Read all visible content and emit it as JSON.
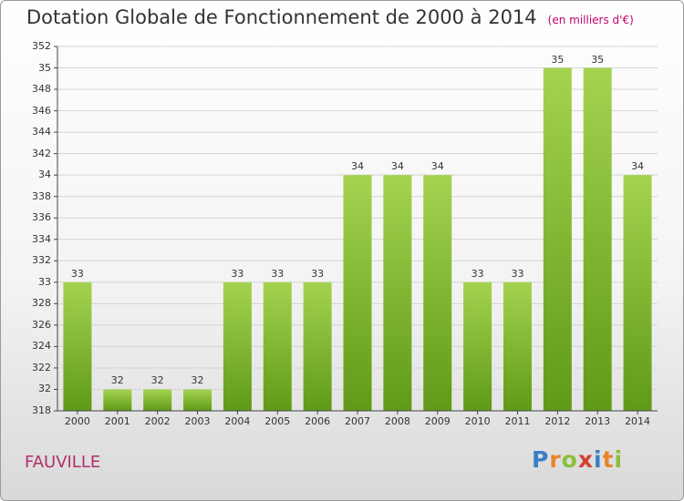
{
  "title": "Dotation Globale de Fonctionnement de 2000 à 2014",
  "unit_note": "(en milliers d'€)",
  "commune": "FAUVILLE",
  "logo": "Proxiti",
  "colors": {
    "bar_light": "#9fd04c",
    "bar_dark": "#5f9a16",
    "grid": "#d4d4d4",
    "axis": "#444444"
  },
  "chart_data": {
    "type": "bar",
    "title": "Dotation Globale de Fonctionnement de 2000 à 2014",
    "subtitle": "(en milliers d'€)",
    "categories": [
      "2000",
      "2001",
      "2002",
      "2003",
      "2004",
      "2005",
      "2006",
      "2007",
      "2008",
      "2009",
      "2010",
      "2011",
      "2012",
      "2013",
      "2014"
    ],
    "values": [
      33,
      32,
      32,
      32,
      33,
      33,
      33,
      34,
      34,
      34,
      33,
      33,
      35,
      35,
      34
    ],
    "bar_labels": [
      "33",
      "32",
      "32",
      "32",
      "33",
      "33",
      "33",
      "34",
      "34",
      "34",
      "33",
      "33",
      "35",
      "35",
      "34"
    ],
    "yticks": [
      "31.8",
      "32",
      "32.2",
      "32.4",
      "32.6",
      "32.8",
      "33",
      "33.2",
      "33.4",
      "33.6",
      "33.8",
      "34",
      "34.2",
      "34.4",
      "34.6",
      "34.8",
      "35",
      "35.2"
    ],
    "ytick_labels": [
      "318",
      "32",
      "322",
      "324",
      "326",
      "328",
      "33",
      "332",
      "334",
      "336",
      "338",
      "34",
      "342",
      "344",
      "346",
      "348",
      "35",
      "352"
    ],
    "ylim": [
      31.8,
      35.2
    ],
    "grid": true,
    "legend": "none"
  }
}
